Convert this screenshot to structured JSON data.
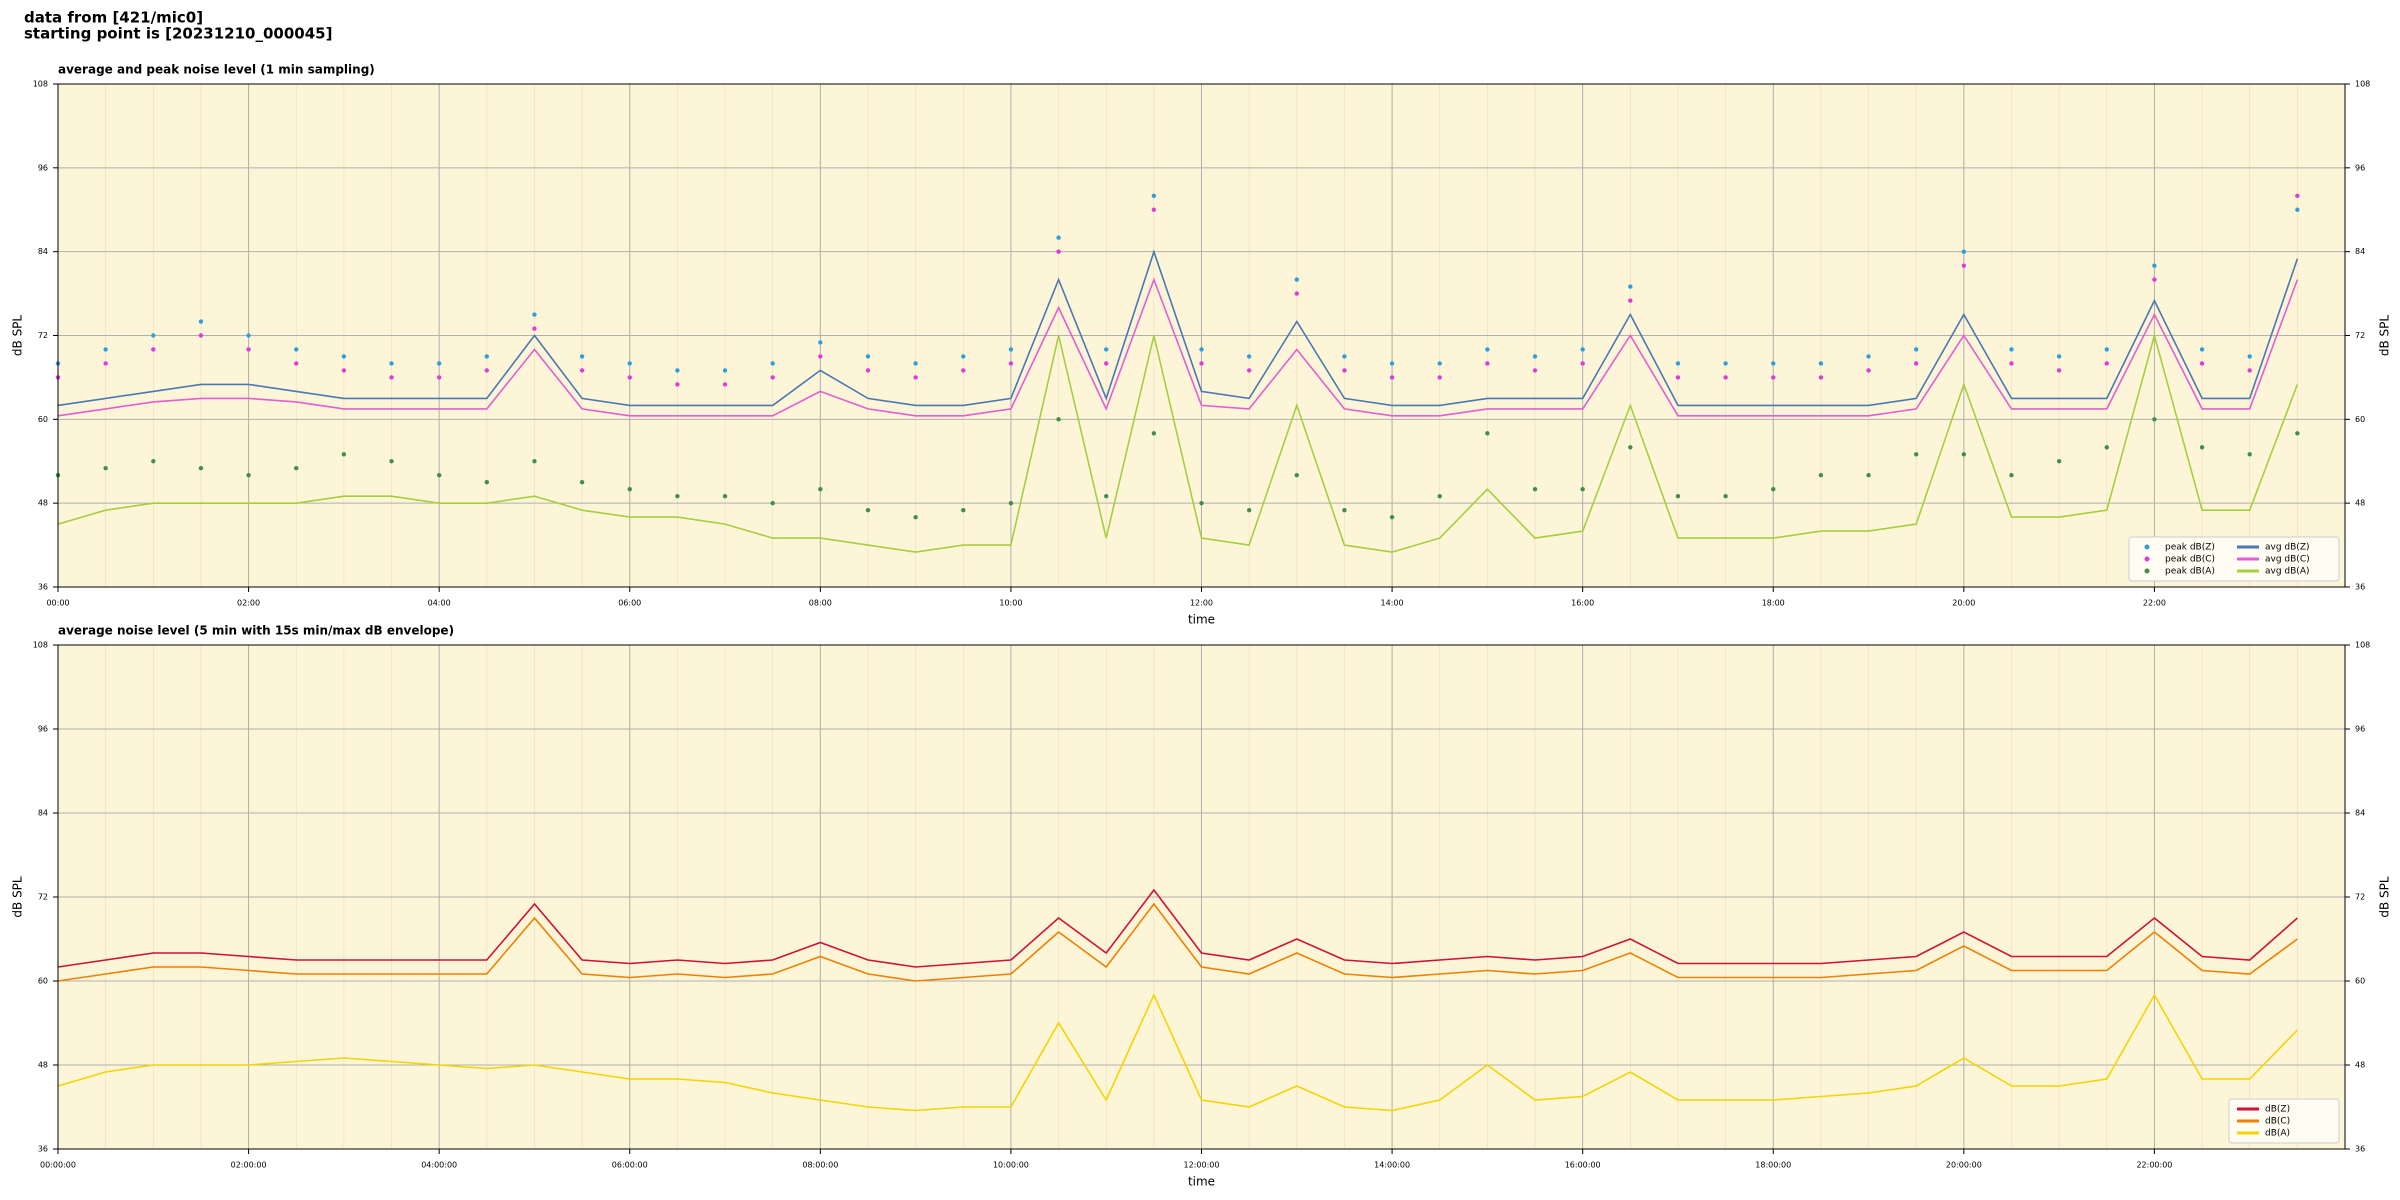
{
  "header": {
    "line1": "data from [421/mic0]",
    "line2": "starting point is [20231210_000045]"
  },
  "chart_data": [
    {
      "type": "line",
      "title": "average and peak noise level (1 min sampling)",
      "xlabel": "time",
      "ylabel": "dB SPL",
      "x": [
        "00:00",
        "00:30",
        "01:00",
        "01:30",
        "02:00",
        "02:30",
        "03:00",
        "03:30",
        "04:00",
        "04:30",
        "05:00",
        "05:30",
        "06:00",
        "06:30",
        "07:00",
        "07:30",
        "08:00",
        "08:30",
        "09:00",
        "09:30",
        "10:00",
        "10:30",
        "11:00",
        "11:30",
        "12:00",
        "12:30",
        "13:00",
        "13:30",
        "14:00",
        "14:30",
        "15:00",
        "15:30",
        "16:00",
        "16:30",
        "17:00",
        "17:30",
        "18:00",
        "18:30",
        "19:00",
        "19:30",
        "20:00",
        "20:30",
        "21:00",
        "21:30",
        "22:00",
        "22:30",
        "23:00",
        "23:30"
      ],
      "xticks": [
        "00:00",
        "02:00",
        "04:00",
        "06:00",
        "08:00",
        "10:00",
        "12:00",
        "14:00",
        "16:00",
        "18:00",
        "20:00",
        "22:00"
      ],
      "ylim": [
        36,
        108
      ],
      "yticks": [
        36,
        48,
        60,
        72,
        84,
        96,
        108
      ],
      "grid": true,
      "legend": "lower right",
      "legend_columns": 2,
      "series": [
        {
          "name": "peak dB(Z)",
          "type": "scatter",
          "color": "#2e9fdc",
          "values": [
            68,
            70,
            72,
            74,
            72,
            70,
            69,
            68,
            68,
            69,
            75,
            69,
            68,
            67,
            67,
            68,
            71,
            69,
            68,
            69,
            70,
            86,
            70,
            92,
            70,
            69,
            80,
            69,
            68,
            68,
            70,
            69,
            70,
            79,
            68,
            68,
            68,
            68,
            69,
            70,
            84,
            70,
            69,
            70,
            82,
            70,
            69,
            90
          ]
        },
        {
          "name": "peak dB(C)",
          "type": "scatter",
          "color": "#e03adf",
          "values": [
            66,
            68,
            70,
            72,
            70,
            68,
            67,
            66,
            66,
            67,
            73,
            67,
            66,
            65,
            65,
            66,
            69,
            67,
            66,
            67,
            68,
            84,
            68,
            90,
            68,
            67,
            78,
            67,
            66,
            66,
            68,
            67,
            68,
            77,
            66,
            66,
            66,
            66,
            67,
            68,
            82,
            68,
            67,
            68,
            80,
            68,
            67,
            92
          ]
        },
        {
          "name": "peak dB(A)",
          "type": "scatter",
          "color": "#3f8f4a",
          "values": [
            52,
            53,
            54,
            53,
            52,
            53,
            55,
            54,
            52,
            51,
            54,
            51,
            50,
            49,
            49,
            48,
            50,
            47,
            46,
            47,
            48,
            60,
            49,
            58,
            48,
            47,
            52,
            47,
            46,
            49,
            58,
            50,
            50,
            56,
            49,
            49,
            50,
            52,
            52,
            55,
            55,
            52,
            54,
            56,
            60,
            56,
            55,
            58
          ]
        },
        {
          "name": "avg dB(Z)",
          "type": "line",
          "color": "#4a78b4",
          "values": [
            62,
            63,
            64,
            65,
            65,
            64,
            63,
            63,
            63,
            63,
            72,
            63,
            62,
            62,
            62,
            62,
            67,
            63,
            62,
            62,
            63,
            80,
            63,
            84,
            64,
            63,
            74,
            63,
            62,
            62,
            63,
            63,
            63,
            75,
            62,
            62,
            62,
            62,
            62,
            63,
            75,
            63,
            63,
            63,
            77,
            63,
            63,
            83
          ]
        },
        {
          "name": "avg dB(C)",
          "type": "line",
          "color": "#e35ed2",
          "values": [
            60.5,
            61.5,
            62.5,
            63,
            63,
            62.5,
            61.5,
            61.5,
            61.5,
            61.5,
            70,
            61.5,
            60.5,
            60.5,
            60.5,
            60.5,
            64,
            61.5,
            60.5,
            60.5,
            61.5,
            76,
            61.5,
            80,
            62,
            61.5,
            70,
            61.5,
            60.5,
            60.5,
            61.5,
            61.5,
            61.5,
            72,
            60.5,
            60.5,
            60.5,
            60.5,
            60.5,
            61.5,
            72,
            61.5,
            61.5,
            61.5,
            75,
            61.5,
            61.5,
            80
          ]
        },
        {
          "name": "avg dB(A)",
          "type": "line",
          "color": "#a6cf3e",
          "values": [
            45,
            47,
            48,
            48,
            48,
            48,
            49,
            49,
            48,
            48,
            49,
            47,
            46,
            46,
            45,
            43,
            43,
            42,
            41,
            42,
            42,
            72,
            43,
            72,
            43,
            42,
            62,
            42,
            41,
            43,
            50,
            43,
            44,
            62,
            43,
            43,
            43,
            44,
            44,
            45,
            65,
            46,
            46,
            47,
            72,
            47,
            47,
            65
          ]
        }
      ]
    },
    {
      "type": "line",
      "title": "average noise level (5 min with 15s min/max dB envelope)",
      "xlabel": "time",
      "ylabel": "dB SPL",
      "x": [
        "00:00:00",
        "00:30:00",
        "01:00:00",
        "01:30:00",
        "02:00:00",
        "02:30:00",
        "03:00:00",
        "03:30:00",
        "04:00:00",
        "04:30:00",
        "05:00:00",
        "05:30:00",
        "06:00:00",
        "06:30:00",
        "07:00:00",
        "07:30:00",
        "08:00:00",
        "08:30:00",
        "09:00:00",
        "09:30:00",
        "10:00:00",
        "10:30:00",
        "11:00:00",
        "11:30:00",
        "12:00:00",
        "12:30:00",
        "13:00:00",
        "13:30:00",
        "14:00:00",
        "14:30:00",
        "15:00:00",
        "15:30:00",
        "16:00:00",
        "16:30:00",
        "17:00:00",
        "17:30:00",
        "18:00:00",
        "18:30:00",
        "19:00:00",
        "19:30:00",
        "20:00:00",
        "20:30:00",
        "21:00:00",
        "21:30:00",
        "22:00:00",
        "22:30:00",
        "23:00:00",
        "23:30:00"
      ],
      "xticks": [
        "00:00:00",
        "02:00:00",
        "04:00:00",
        "06:00:00",
        "08:00:00",
        "10:00:00",
        "12:00:00",
        "14:00:00",
        "16:00:00",
        "18:00:00",
        "20:00:00",
        "22:00:00"
      ],
      "ylim": [
        36,
        108
      ],
      "yticks": [
        36,
        48,
        60,
        72,
        84,
        96,
        108
      ],
      "grid": true,
      "legend": "lower right",
      "legend_columns": 1,
      "series": [
        {
          "name": "dB(Z)",
          "type": "line",
          "color": "#d0103a",
          "values": [
            62,
            63,
            64,
            64,
            63.5,
            63,
            63,
            63,
            63,
            63,
            71,
            63,
            62.5,
            63,
            62.5,
            63,
            65.5,
            63,
            62,
            62.5,
            63,
            69,
            64,
            73,
            64,
            63,
            66,
            63,
            62.5,
            63,
            63.5,
            63,
            63.5,
            66,
            62.5,
            62.5,
            62.5,
            62.5,
            63,
            63.5,
            67,
            63.5,
            63.5,
            63.5,
            69,
            63.5,
            63,
            69
          ]
        },
        {
          "name": "dB(C)",
          "type": "line",
          "color": "#f08000",
          "values": [
            60,
            61,
            62,
            62,
            61.5,
            61,
            61,
            61,
            61,
            61,
            69,
            61,
            60.5,
            61,
            60.5,
            61,
            63.5,
            61,
            60,
            60.5,
            61,
            67,
            62,
            71,
            62,
            61,
            64,
            61,
            60.5,
            61,
            61.5,
            61,
            61.5,
            64,
            60.5,
            60.5,
            60.5,
            60.5,
            61,
            61.5,
            65,
            61.5,
            61.5,
            61.5,
            67,
            61.5,
            61,
            66
          ]
        },
        {
          "name": "dB(A)",
          "type": "line",
          "color": "#f5d400",
          "values": [
            45,
            47,
            48,
            48,
            48,
            48.5,
            49,
            48.5,
            48,
            47.5,
            48,
            47,
            46,
            46,
            45.5,
            44,
            43,
            42,
            41.5,
            42,
            42,
            54,
            43,
            58,
            43,
            42,
            45,
            42,
            41.5,
            43,
            48,
            43,
            43.5,
            47,
            43,
            43,
            43,
            43.5,
            44,
            45,
            49,
            45,
            45,
            46,
            58,
            46,
            46,
            53
          ]
        }
      ]
    }
  ]
}
